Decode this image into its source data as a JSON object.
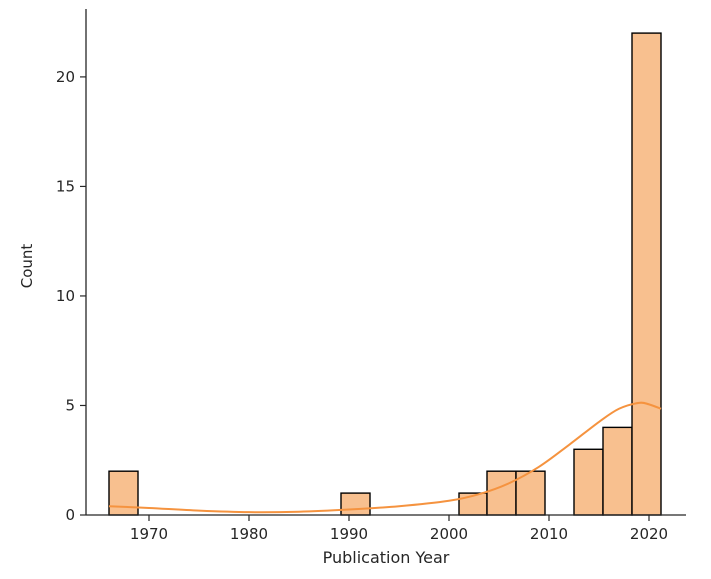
{
  "chart_data": {
    "type": "bar",
    "subtype": "histogram_with_kde",
    "xlabel": "Publication Year",
    "ylabel": "Count",
    "xlim": [
      1963.7,
      2023.7
    ],
    "ylim": [
      0,
      23.1
    ],
    "x_ticks": [
      1970,
      1980,
      1990,
      2000,
      2010,
      2020
    ],
    "y_ticks": [
      0,
      5,
      10,
      15,
      20
    ],
    "bins": [
      {
        "start": 1966.0,
        "end": 1968.9,
        "count": 2
      },
      {
        "start": 1989.2,
        "end": 1992.1,
        "count": 1
      },
      {
        "start": 2001.0,
        "end": 2003.8,
        "count": 1
      },
      {
        "start": 2003.8,
        "end": 2006.7,
        "count": 2
      },
      {
        "start": 2006.7,
        "end": 2009.6,
        "count": 2
      },
      {
        "start": 2012.5,
        "end": 2015.4,
        "count": 3
      },
      {
        "start": 2015.4,
        "end": 2018.3,
        "count": 4
      },
      {
        "start": 2018.3,
        "end": 2021.2,
        "count": 22
      }
    ],
    "kde": {
      "x": [
        1966.0,
        1970,
        1975,
        1980,
        1985,
        1990,
        1995,
        2000,
        2003,
        2006,
        2009,
        2012,
        2015,
        2017,
        2019,
        2020,
        2021.2
      ],
      "y": [
        0.4,
        0.32,
        0.2,
        0.13,
        0.15,
        0.25,
        0.4,
        0.65,
        0.95,
        1.45,
        2.2,
        3.2,
        4.25,
        4.85,
        5.12,
        5.05,
        4.85
      ]
    },
    "bar_color": "#f8c08f",
    "bar_edge_color": "#000000",
    "kde_color": "#f5933f",
    "grid": false
  }
}
